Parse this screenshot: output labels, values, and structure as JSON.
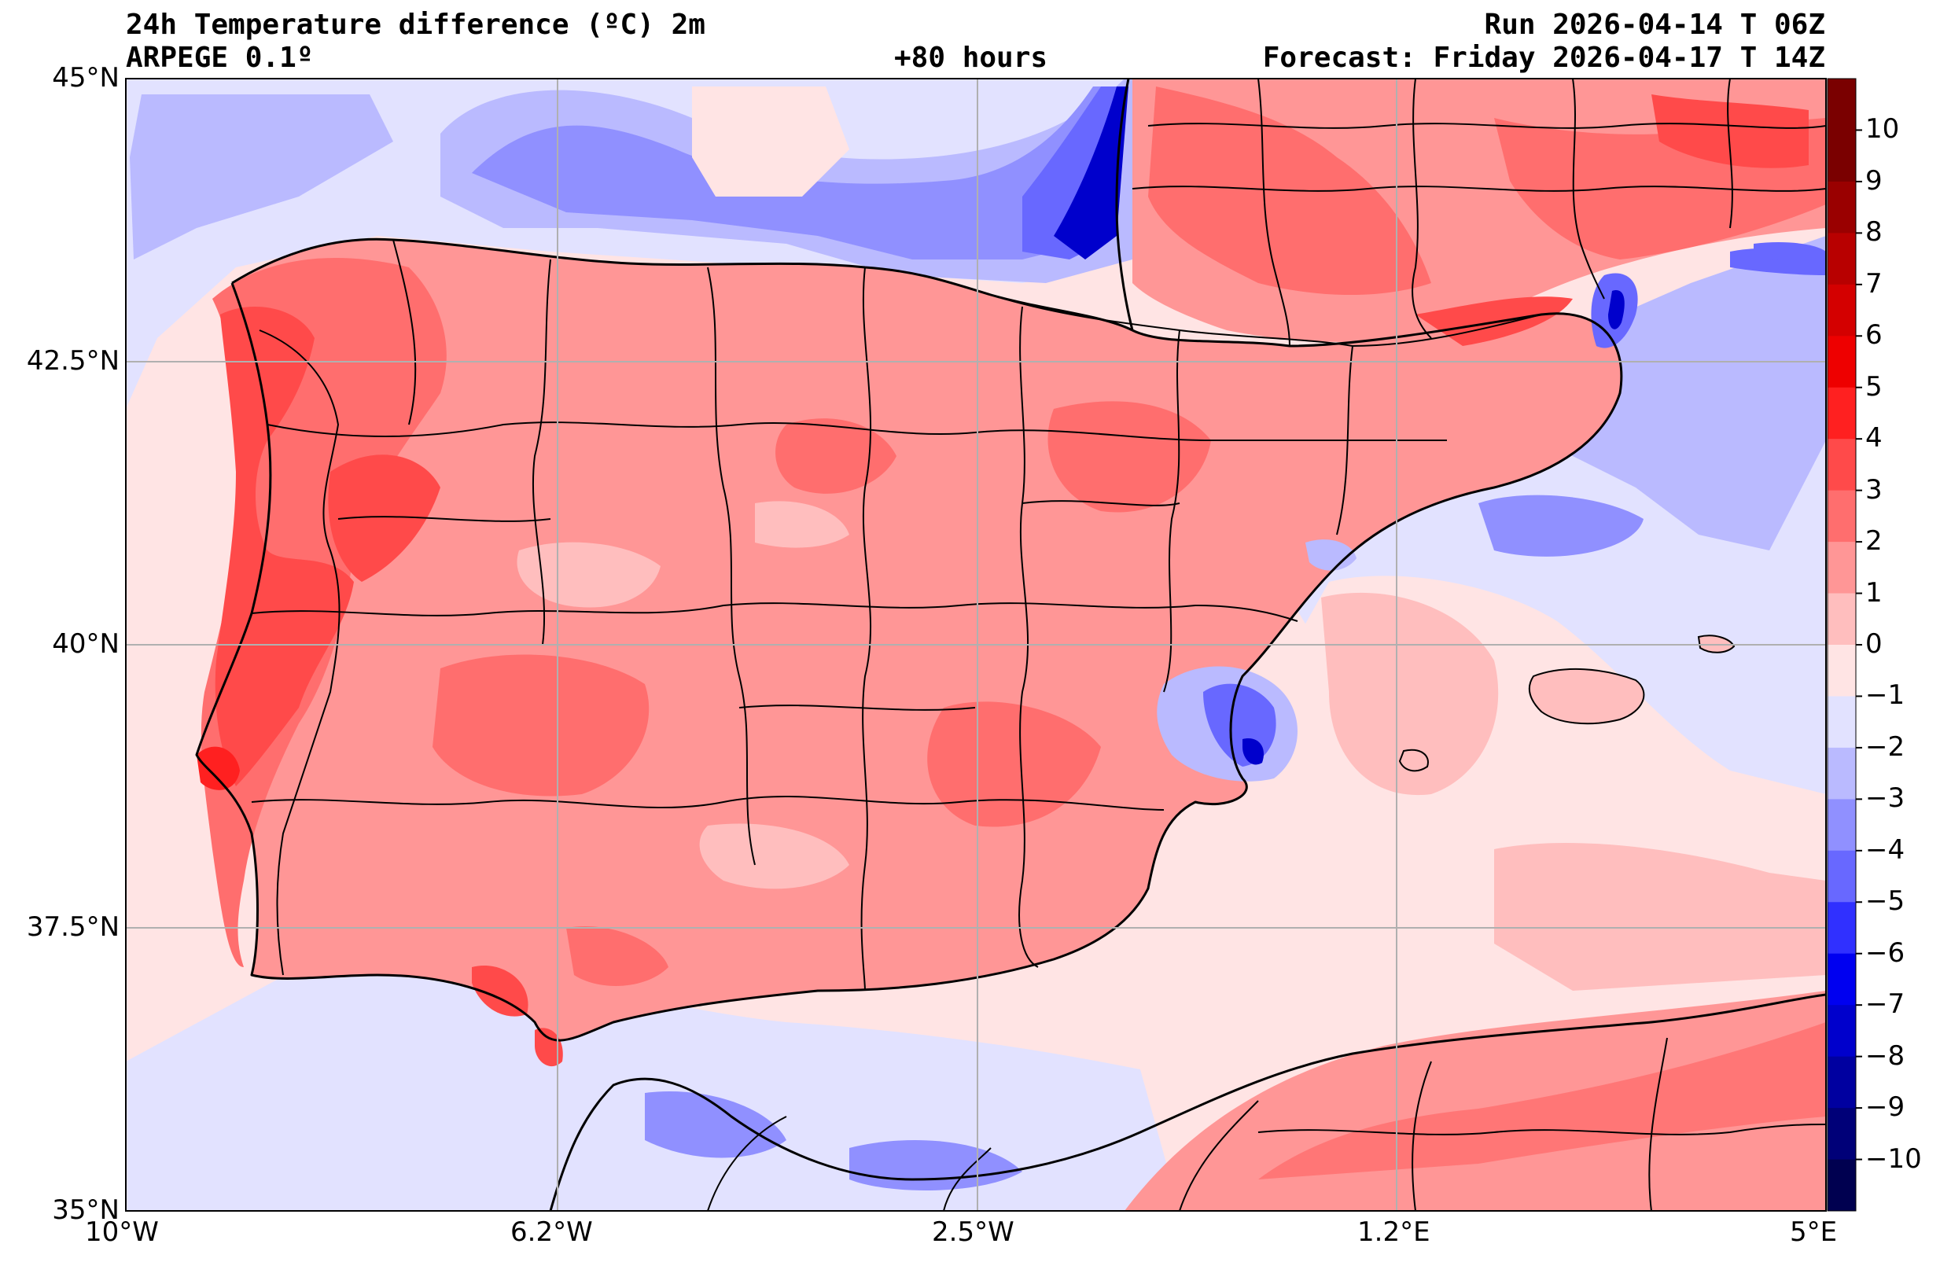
{
  "header": {
    "title": "24h Temperature difference (ºC) 2m",
    "model": "ARPEGE 0.1º",
    "lead_time": "+80 hours",
    "run": "Run 2026-04-14 T 06Z",
    "forecast": "Forecast: Friday 2026-04-17 T 14Z"
  },
  "axes": {
    "lat_ticks": [
      "45°N",
      "42.5°N",
      "40°N",
      "37.5°N",
      "35°N"
    ],
    "lon_ticks": [
      "10°W",
      "6.2°W",
      "2.5°W",
      "1.2°E",
      "5°E"
    ],
    "lat_range": [
      35,
      45
    ],
    "lon_range": [
      -10,
      5
    ],
    "grid": true
  },
  "colorbar": {
    "labels": [
      "10",
      "9",
      "8",
      "7",
      "6",
      "5",
      "4",
      "3",
      "2",
      "1",
      "0",
      "−1",
      "−2",
      "−3",
      "−4",
      "−5",
      "−6",
      "−7",
      "−8",
      "−9",
      "−10"
    ],
    "colors": [
      "#7a0000",
      "#9a0000",
      "#b80000",
      "#d40000",
      "#ee0000",
      "#ff2020",
      "#ff4a4a",
      "#ff6e6e",
      "#ff9696",
      "#ffbebe",
      "#ffe4e4",
      "#e2e2ff",
      "#babaff",
      "#9090ff",
      "#6868ff",
      "#3030ff",
      "#0000f0",
      "#0000cc",
      "#0000a0",
      "#000078",
      "#000050"
    ],
    "units": "ºC"
  }
}
